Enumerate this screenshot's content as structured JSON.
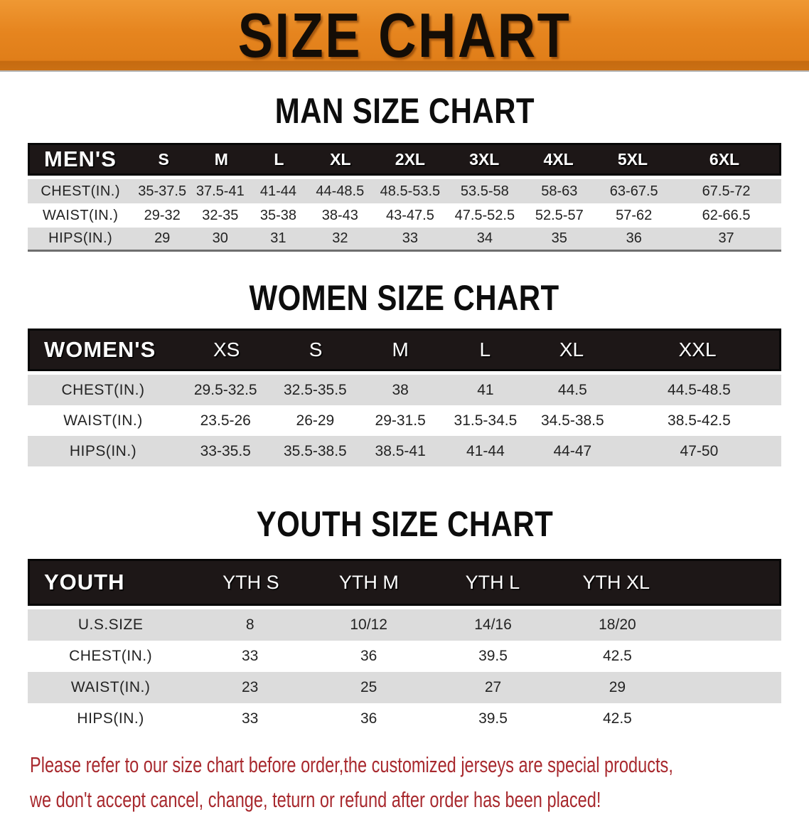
{
  "banner": {
    "title": "SIZE CHART"
  },
  "colors": {
    "banner_orange": "#E6851F",
    "banner_orange_dark": "#C56A10",
    "header_bar_black": "#1D1717",
    "row_gray": "#DCDCDC",
    "heading_black": "#0D0D0D",
    "disclaimer_red": "#A8292E"
  },
  "sections": [
    {
      "id": "men",
      "heading": "MAN SIZE CHART",
      "table": {
        "header_label": "MEN'S",
        "columns": [
          "S",
          "M",
          "L",
          "XL",
          "2XL",
          "3XL",
          "4XL",
          "5XL",
          "6XL"
        ],
        "rows": [
          {
            "label": "CHEST(IN.)",
            "values": [
              "35-37.5",
              "37.5-41",
              "41-44",
              "44-48.5",
              "48.5-53.5",
              "53.5-58",
              "58-63",
              "63-67.5",
              "67.5-72"
            ]
          },
          {
            "label": "WAIST(IN.)",
            "values": [
              "29-32",
              "32-35",
              "35-38",
              "38-43",
              "43-47.5",
              "47.5-52.5",
              "52.5-57",
              "57-62",
              "62-66.5"
            ]
          },
          {
            "label": "HIPS(IN.)",
            "values": [
              "29",
              "30",
              "31",
              "32",
              "33",
              "34",
              "35",
              "36",
              "37"
            ]
          }
        ]
      }
    },
    {
      "id": "women",
      "heading": "WOMEN SIZE CHART",
      "table": {
        "header_label": "WOMEN'S",
        "columns": [
          "XS",
          "S",
          "M",
          "L",
          "XL",
          "XXL"
        ],
        "rows": [
          {
            "label": "CHEST(IN.)",
            "values": [
              "29.5-32.5",
              "32.5-35.5",
              "38",
              "41",
              "44.5",
              "44.5-48.5"
            ]
          },
          {
            "label": "WAIST(IN.)",
            "values": [
              "23.5-26",
              "26-29",
              "29-31.5",
              "31.5-34.5",
              "34.5-38.5",
              "38.5-42.5"
            ]
          },
          {
            "label": "HIPS(IN.)",
            "values": [
              "33-35.5",
              "35.5-38.5",
              "38.5-41",
              "41-44",
              "44-47",
              "47-50"
            ]
          }
        ]
      }
    },
    {
      "id": "youth",
      "heading": "YOUTH SIZE CHART",
      "table": {
        "header_label": "YOUTH",
        "columns": [
          "YTH S",
          "YTH M",
          "YTH L",
          "YTH XL"
        ],
        "rows": [
          {
            "label": "U.S.SIZE",
            "values": [
              "8",
              "10/12",
              "14/16",
              "18/20"
            ]
          },
          {
            "label": "CHEST(IN.)",
            "values": [
              "33",
              "36",
              "39.5",
              "42.5"
            ]
          },
          {
            "label": "WAIST(IN.)",
            "values": [
              "23",
              "25",
              "27",
              "29"
            ]
          },
          {
            "label": "HIPS(IN.)",
            "values": [
              "33",
              "36",
              "39.5",
              "42.5"
            ]
          }
        ]
      }
    }
  ],
  "disclaimer": {
    "line1": "Please refer to our size chart before order,the customized jerseys are special products,",
    "line2": "we don't accept cancel, change, teturn or refund after order has been placed!"
  }
}
